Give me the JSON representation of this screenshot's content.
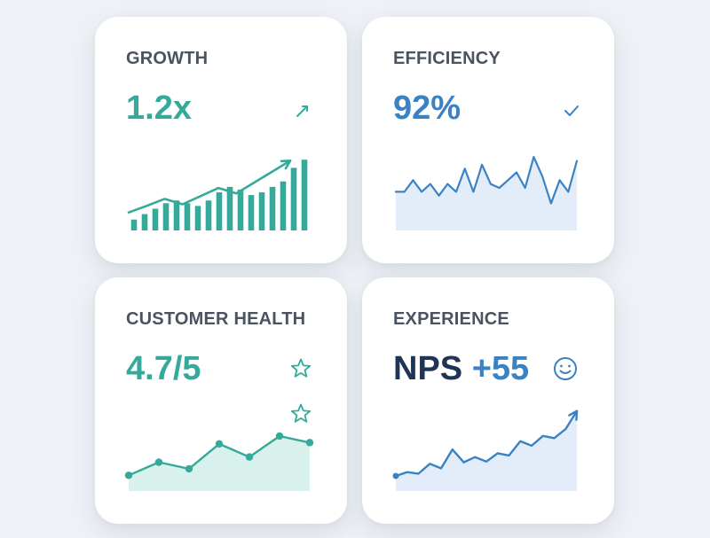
{
  "colors": {
    "teal": "#35a99a",
    "blue": "#3b82c4",
    "navy": "#1f3557",
    "teal_fill": "#d9f1ec",
    "blue_fill": "#e3edf9"
  },
  "cards": [
    {
      "title": "GROWTH",
      "value": "1.2x",
      "icon": "trend-arrow-icon",
      "accent": "#35a99a"
    },
    {
      "title": "EFFICIENCY",
      "value": "92%",
      "icon": "checkmark-icon",
      "accent": "#3b82c4"
    },
    {
      "title": "CUSTOMER HEALTH",
      "value": "4.7/5",
      "icon": "star-icon",
      "accent": "#35a99a"
    },
    {
      "title": "EXPERIENCE",
      "value_prefix": "NPS",
      "value_number": "+55",
      "icon": "smiley-face-icon",
      "accent": "#3b82c4"
    }
  ],
  "chart_data": [
    {
      "type": "bar",
      "series": [
        {
          "type": "bar",
          "values": [
            2,
            3,
            4,
            5,
            5.5,
            5,
            4.5,
            5.5,
            7,
            8,
            7.5,
            6.5,
            7,
            8,
            9,
            11.5,
            13
          ]
        },
        {
          "type": "line",
          "values": [
            2,
            3.2,
            4.5,
            3.5,
            5,
            6.5,
            5.5,
            7.5,
            9.5,
            11.5
          ]
        }
      ]
    },
    {
      "type": "area",
      "values": [
        5,
        5,
        6.5,
        5,
        6,
        4.5,
        6,
        5,
        8,
        5,
        8.5,
        6,
        5.5,
        6.5,
        7.5,
        5.5,
        9.5,
        7,
        3.5,
        6.5,
        5,
        9
      ]
    },
    {
      "type": "line",
      "values": [
        1.2,
        2.2,
        1.7,
        3.6,
        2.6,
        4.2,
        3.7
      ]
    },
    {
      "type": "area",
      "values": [
        2,
        2.5,
        2.3,
        3.6,
        3,
        5.5,
        3.8,
        4.5,
        3.9,
        5,
        4.7,
        6.6,
        6,
        7.3,
        7,
        8.2,
        10.6
      ]
    }
  ]
}
